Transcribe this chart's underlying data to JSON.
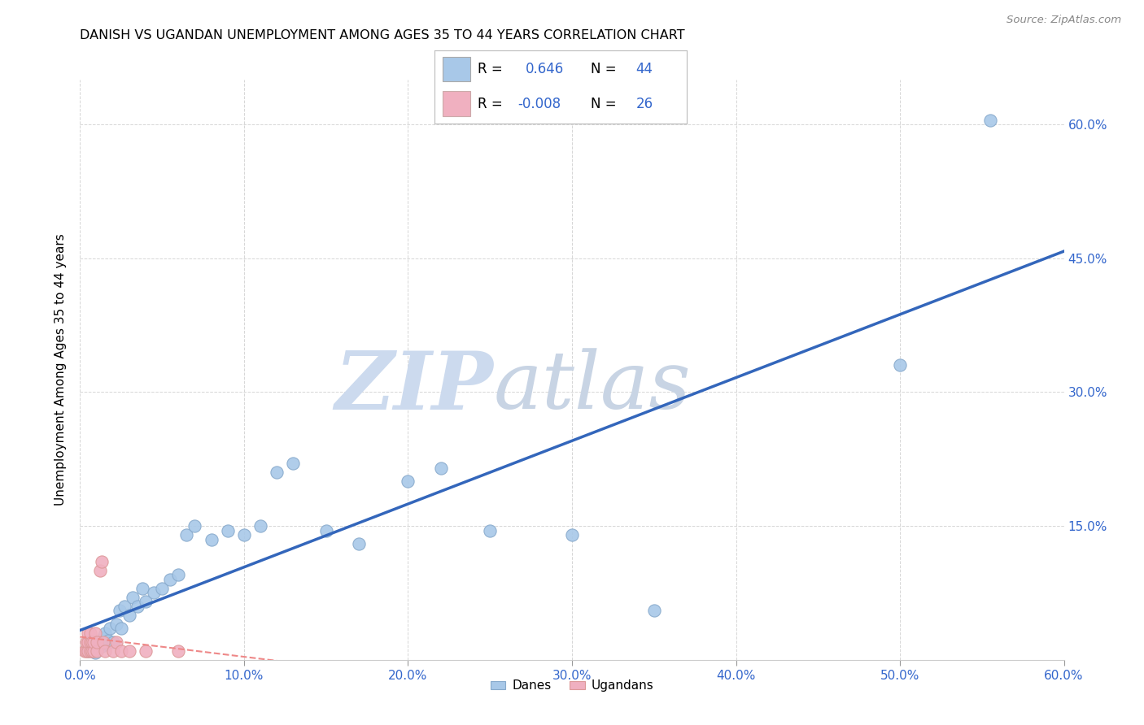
{
  "title": "DANISH VS UGANDAN UNEMPLOYMENT AMONG AGES 35 TO 44 YEARS CORRELATION CHART",
  "source": "Source: ZipAtlas.com",
  "ylabel": "Unemployment Among Ages 35 to 44 years",
  "xlim": [
    0.0,
    0.6
  ],
  "ylim": [
    0.0,
    0.65
  ],
  "xticks": [
    0.0,
    0.1,
    0.2,
    0.3,
    0.4,
    0.5,
    0.6
  ],
  "xtick_labels": [
    "0.0%",
    "10.0%",
    "20.0%",
    "30.0%",
    "40.0%",
    "50.0%",
    "60.0%"
  ],
  "yticks": [
    0.0,
    0.15,
    0.3,
    0.45,
    0.6
  ],
  "ytick_labels": [
    "",
    "15.0%",
    "30.0%",
    "45.0%",
    "60.0%"
  ],
  "danes_color": "#a8c8e8",
  "ugandans_color": "#f0b0c0",
  "trend_danes_color": "#3366bb",
  "trend_ugandans_color": "#ee8888",
  "danes_R": "0.646",
  "danes_N": "44",
  "ugandans_R": "-0.008",
  "ugandans_N": "26",
  "legend_R_label": "R =",
  "legend_N_label": "N =",
  "danes_label": "Danes",
  "ugandans_label": "Ugandans",
  "danes_x": [
    0.005,
    0.007,
    0.008,
    0.009,
    0.01,
    0.011,
    0.012,
    0.013,
    0.014,
    0.015,
    0.016,
    0.017,
    0.018,
    0.02,
    0.022,
    0.024,
    0.025,
    0.027,
    0.03,
    0.032,
    0.035,
    0.038,
    0.04,
    0.045,
    0.05,
    0.055,
    0.06,
    0.065,
    0.07,
    0.08,
    0.09,
    0.1,
    0.11,
    0.12,
    0.13,
    0.15,
    0.17,
    0.2,
    0.22,
    0.25,
    0.3,
    0.35,
    0.5,
    0.555
  ],
  "danes_y": [
    0.01,
    0.01,
    0.015,
    0.008,
    0.012,
    0.018,
    0.02,
    0.015,
    0.025,
    0.03,
    0.018,
    0.022,
    0.035,
    0.02,
    0.04,
    0.055,
    0.035,
    0.06,
    0.05,
    0.07,
    0.06,
    0.08,
    0.065,
    0.075,
    0.08,
    0.09,
    0.095,
    0.14,
    0.15,
    0.135,
    0.145,
    0.14,
    0.15,
    0.21,
    0.22,
    0.145,
    0.13,
    0.2,
    0.215,
    0.145,
    0.14,
    0.055,
    0.33,
    0.605
  ],
  "ugandans_x": [
    0.003,
    0.004,
    0.004,
    0.005,
    0.005,
    0.005,
    0.006,
    0.006,
    0.006,
    0.007,
    0.007,
    0.008,
    0.008,
    0.009,
    0.01,
    0.01,
    0.012,
    0.013,
    0.014,
    0.015,
    0.02,
    0.022,
    0.025,
    0.03,
    0.04,
    0.06
  ],
  "ugandans_y": [
    0.01,
    0.01,
    0.02,
    0.01,
    0.02,
    0.03,
    0.01,
    0.02,
    0.03,
    0.01,
    0.02,
    0.01,
    0.02,
    0.03,
    0.01,
    0.02,
    0.1,
    0.11,
    0.02,
    0.01,
    0.01,
    0.02,
    0.01,
    0.01,
    0.01,
    0.01
  ],
  "background_color": "#ffffff",
  "grid_color": "#cccccc",
  "watermark_zip_color": "#ccdaee",
  "watermark_atlas_color": "#c8d4e4"
}
